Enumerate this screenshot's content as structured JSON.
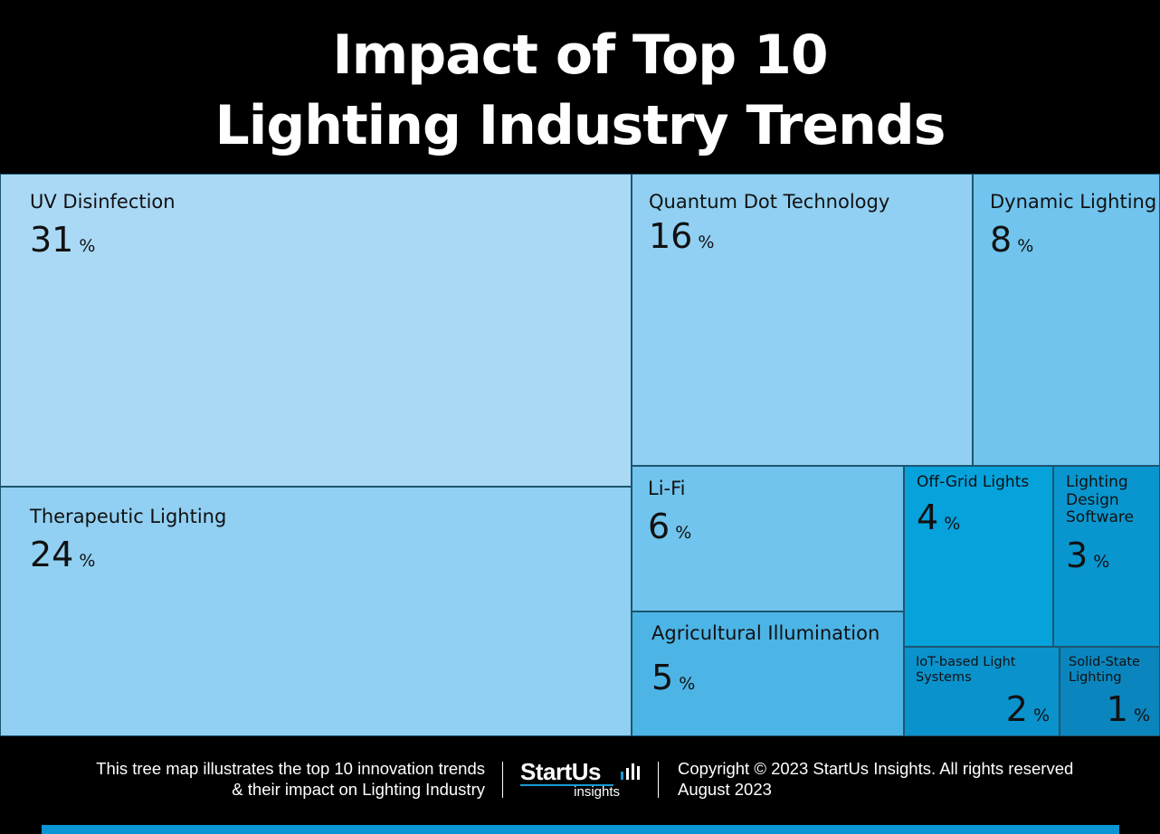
{
  "title": {
    "line1": "Impact of Top 10",
    "line2": "Lighting Industry Trends"
  },
  "chart_data": {
    "type": "treemap",
    "title": "Impact of Top 10 Lighting Industry Trends",
    "unit": "%",
    "items": [
      {
        "name": "UV Disinfection",
        "value": 31,
        "color": "#aad9f6"
      },
      {
        "name": "Therapeutic Lighting",
        "value": 24,
        "color": "#91d0f2"
      },
      {
        "name": "Quantum Dot Technology",
        "value": 16,
        "color": "#91d0f2"
      },
      {
        "name": "Dynamic Lighting",
        "value": 8,
        "color": "#70c4ed"
      },
      {
        "name": "Li-Fi",
        "value": 6,
        "color": "#70c4ed"
      },
      {
        "name": "Agricultural Illumination",
        "value": 5,
        "color": "#4db4e6"
      },
      {
        "name": "Off-Grid Lights",
        "value": 4,
        "color": "#06a2dc"
      },
      {
        "name": "Lighting Design Software",
        "value": 3,
        "color": "#0996cf"
      },
      {
        "name": "IoT-based Light Systems",
        "value": 2,
        "color": "#0a92cc"
      },
      {
        "name": "Solid-State Lighting",
        "value": 1,
        "color": "#0b85bd"
      }
    ]
  },
  "footer": {
    "description_line1": "This tree map illustrates the top 10 innovation trends",
    "description_line2": "& their impact on Lighting Industry",
    "logo_brand": "StartUs",
    "logo_sub": "insights",
    "copyright": "Copyright © 2023 StartUs Insights. All rights reserved",
    "date": "August 2023",
    "accent_color": "#0a96d4"
  }
}
